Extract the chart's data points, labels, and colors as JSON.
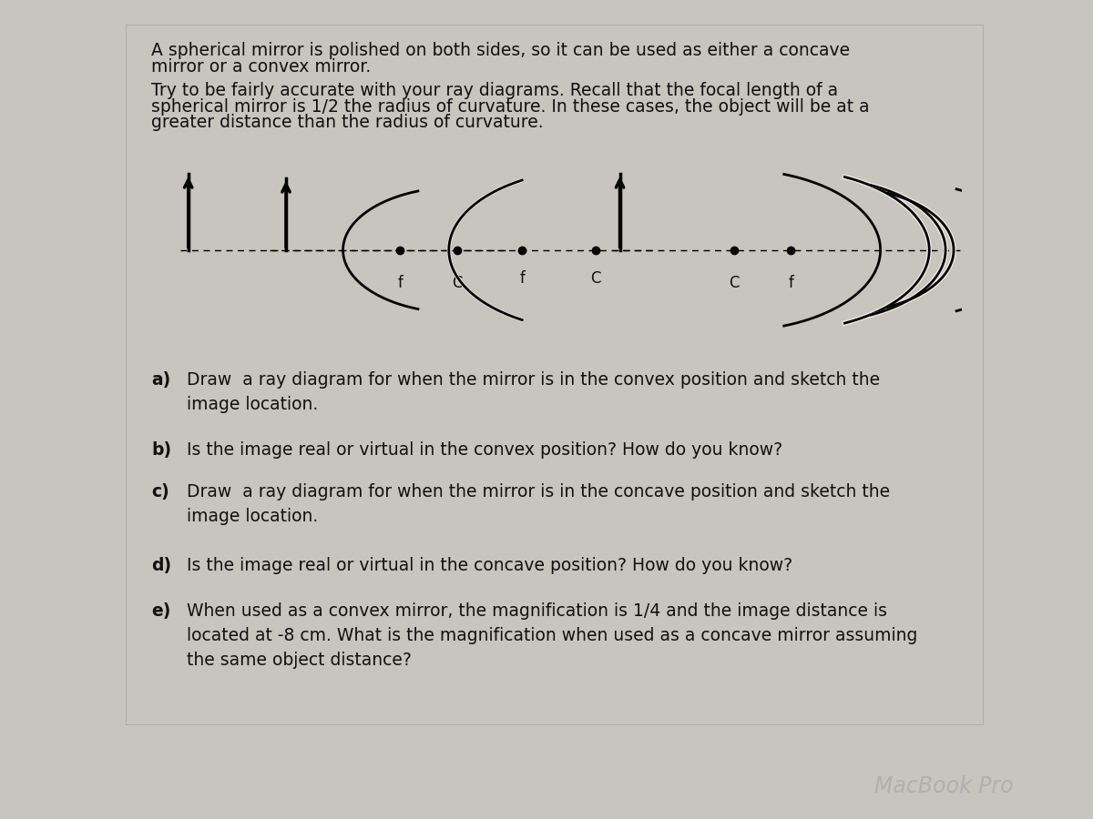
{
  "bg_color": "#c8c4be",
  "panel_color": "#eae8e4",
  "panel_border_color": "#aaaaaa",
  "text_color": "#111111",
  "title_text1": "A spherical mirror is polished on both sides, so it can be used as either a concave",
  "title_text2": "mirror or a convex mirror.",
  "subtitle_text1": "Try to be fairly accurate with your ray diagrams. Recall that the focal length of a",
  "subtitle_text2": "spherical mirror is 1/2 the radius of curvature. In these cases, the object will be at a",
  "subtitle_text3": "greater distance than the radius of curvature.",
  "qa_bold": "a)",
  "qa_rest": " Draw  a ray diagram for when the mirror is in the convex position and sketch the\n image location.",
  "qb_bold": "b)",
  "qb_rest": " Is the image real or virtual in the convex position? How do you know?",
  "qc_bold": "c)",
  "qc_rest": " Draw  a ray diagram for when the mirror is in the concave position and sketch the\n image location.",
  "qd_bold": "d)",
  "qd_rest": " Is the image real or virtual in the concave position? How do you know?",
  "qe_bold": "e)",
  "qe_rest": " When used as a convex mirror, the magnification is 1/4 and the image distance is\n located at -8 cm. What is the magnification when used as a concave mirror assuming\n the same object distance?",
  "macbook_text": "MacBook Pro",
  "font_size_body": 13.5,
  "font_size_macbook": 17,
  "dark_bar_color": "#1c2030",
  "dark_bar_text_color": "#b0b0b0"
}
